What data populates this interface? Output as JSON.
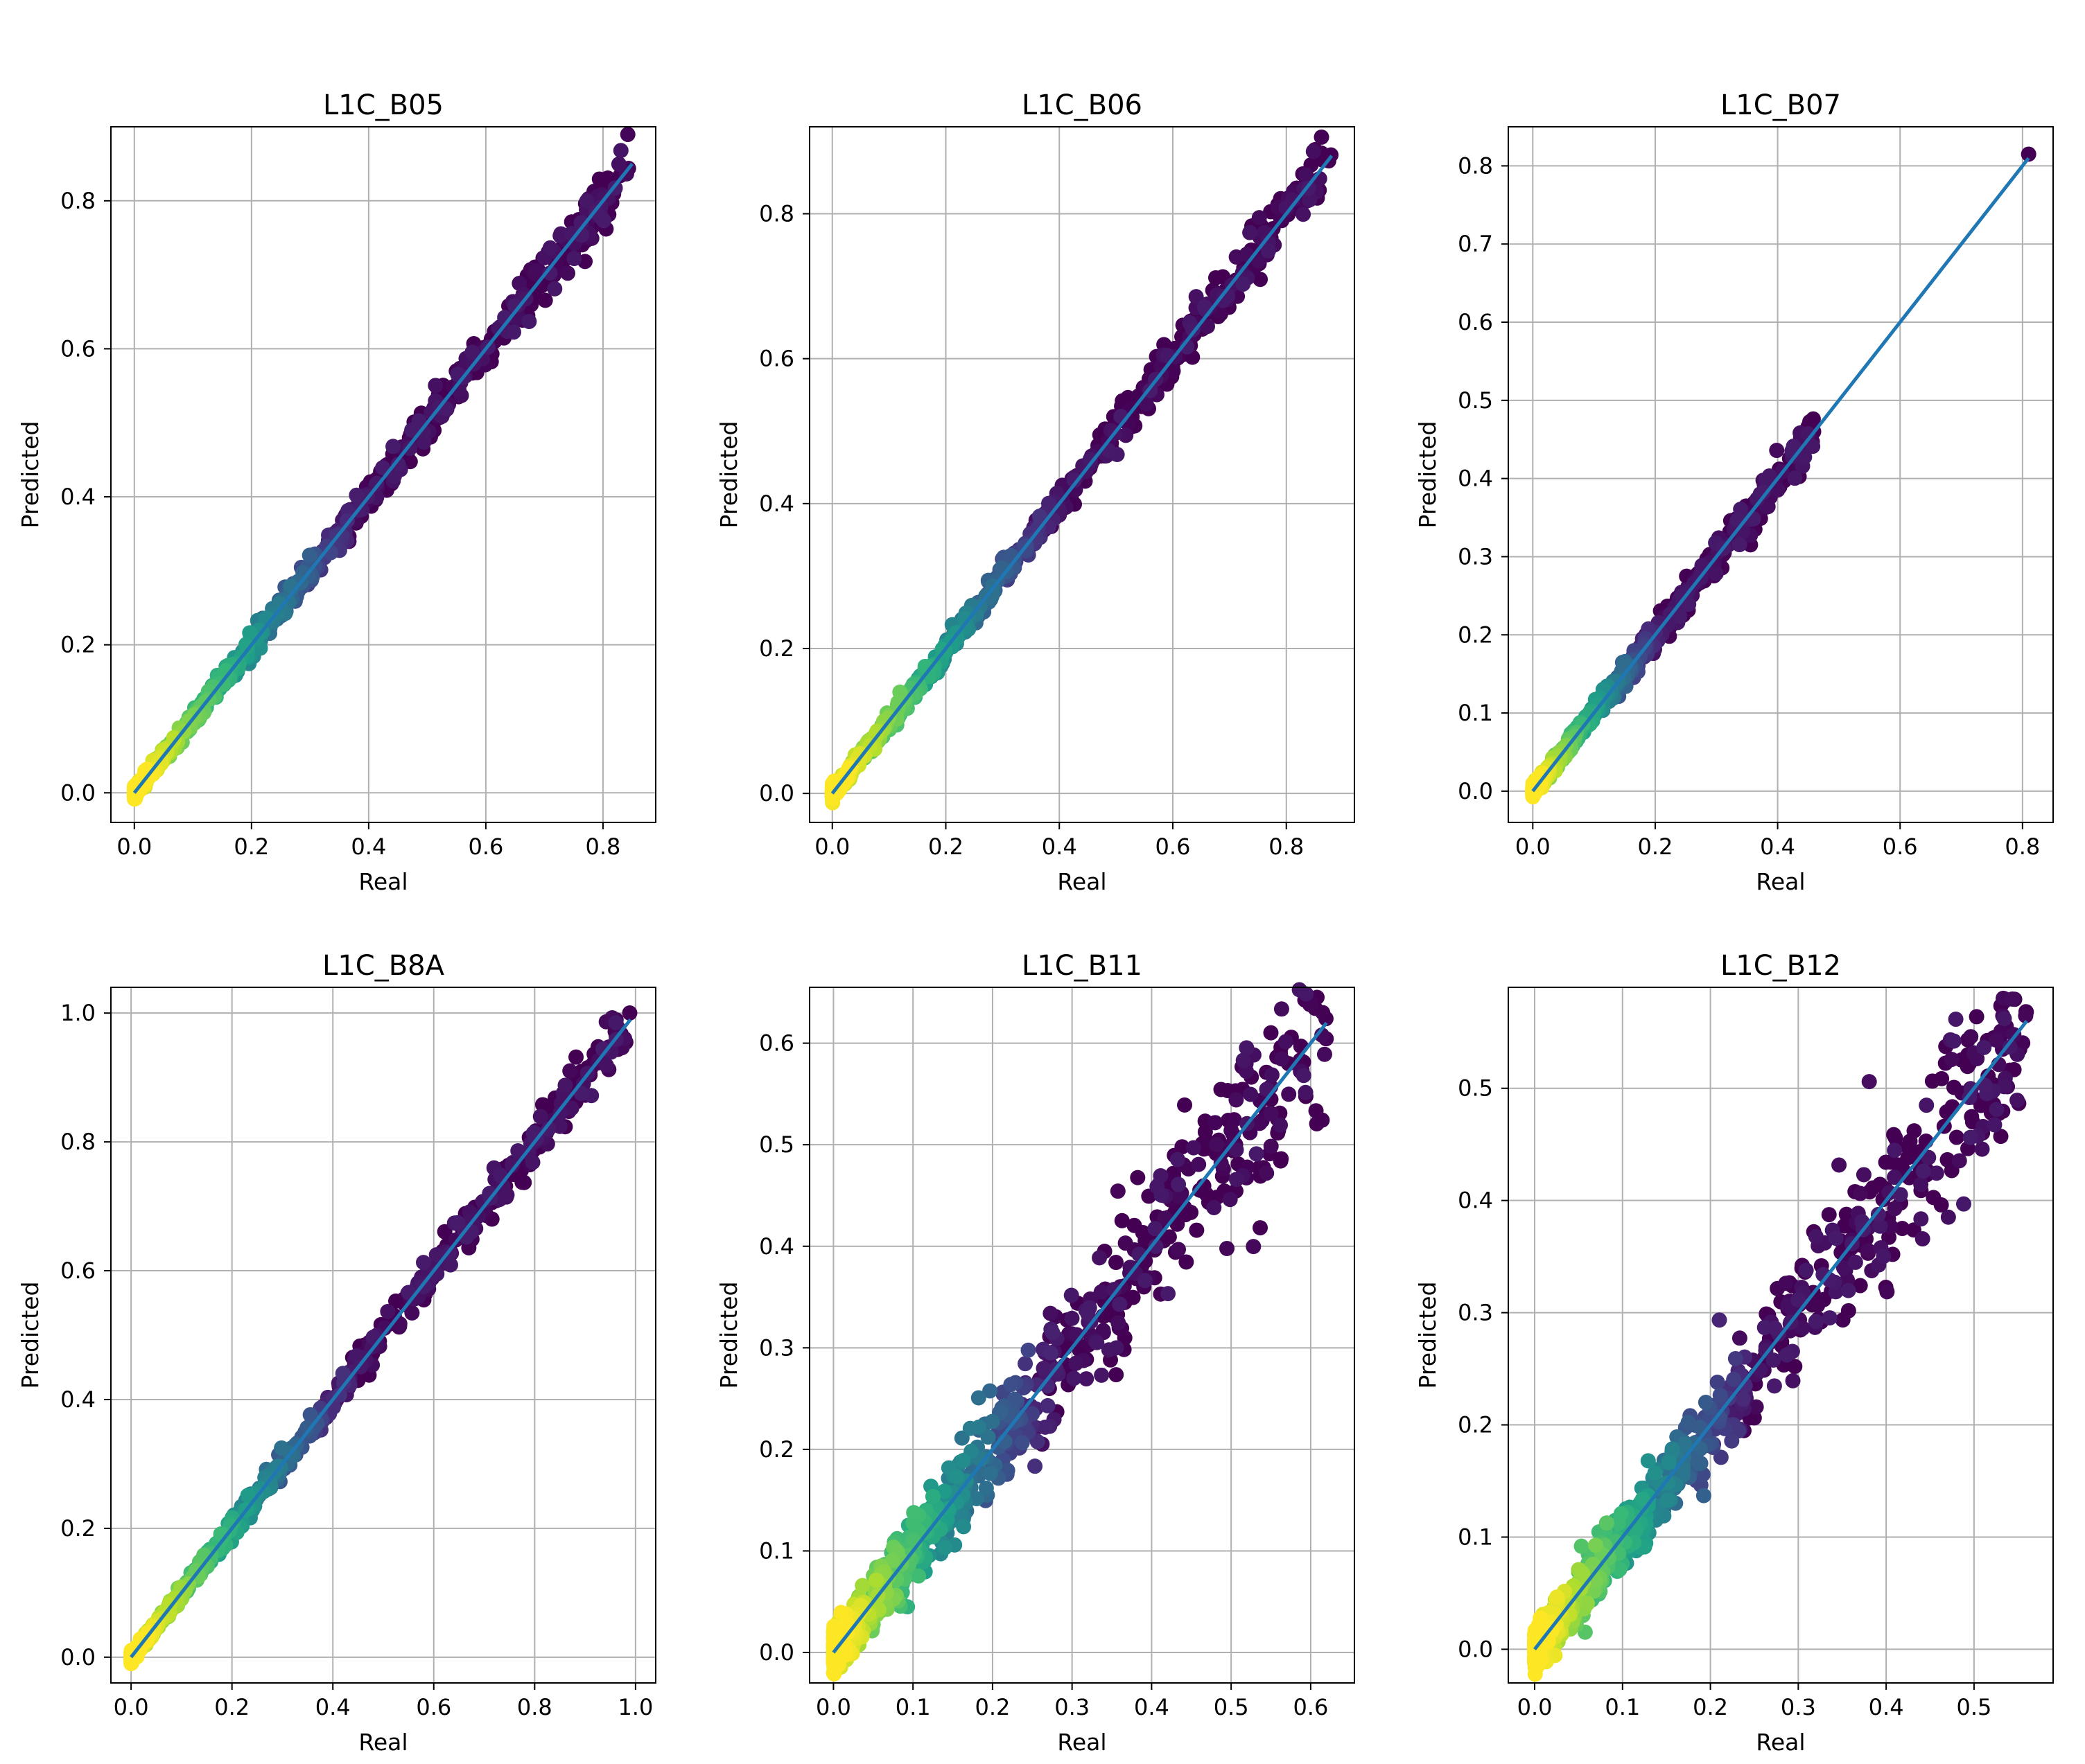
{
  "chart_data": [
    {
      "type": "scatter",
      "title": "L1C_B05",
      "xlabel": "Real",
      "ylabel": "Predicted",
      "xlim": [
        -0.04,
        0.89
      ],
      "ylim": [
        -0.04,
        0.9
      ],
      "xticks": [
        0.0,
        0.2,
        0.4,
        0.6,
        0.8
      ],
      "yticks": [
        0.0,
        0.2,
        0.4,
        0.6,
        0.8
      ],
      "tick_labels_x": [
        "0.0",
        "0.2",
        "0.4",
        "0.6",
        "0.8"
      ],
      "tick_labels_y": [
        "0.0",
        "0.2",
        "0.4",
        "0.6",
        "0.8"
      ],
      "grid": true,
      "fit_line": {
        "x": [
          0.0,
          0.85
        ],
        "y": [
          0.0,
          0.85
        ]
      },
      "scatter": {
        "xmax": 0.85,
        "noise": 0.01,
        "color_by_density": true
      }
    },
    {
      "type": "scatter",
      "title": "L1C_B06",
      "xlabel": "Real",
      "ylabel": "Predicted",
      "xlim": [
        -0.04,
        0.92
      ],
      "ylim": [
        -0.04,
        0.92
      ],
      "xticks": [
        0.0,
        0.2,
        0.4,
        0.6,
        0.8
      ],
      "yticks": [
        0.0,
        0.2,
        0.4,
        0.6,
        0.8
      ],
      "tick_labels_x": [
        "0.0",
        "0.2",
        "0.4",
        "0.6",
        "0.8"
      ],
      "tick_labels_y": [
        "0.0",
        "0.2",
        "0.4",
        "0.6",
        "0.8"
      ],
      "grid": true,
      "fit_line": {
        "x": [
          0.0,
          0.88
        ],
        "y": [
          0.0,
          0.88
        ]
      },
      "scatter": {
        "xmax": 0.88,
        "noise": 0.01,
        "color_by_density": true
      }
    },
    {
      "type": "scatter",
      "title": "L1C_B07",
      "xlabel": "Real",
      "ylabel": "Predicted",
      "xlim": [
        -0.04,
        0.85
      ],
      "ylim": [
        -0.04,
        0.85
      ],
      "xticks": [
        0.0,
        0.2,
        0.4,
        0.6,
        0.8
      ],
      "yticks": [
        0.0,
        0.1,
        0.2,
        0.3,
        0.4,
        0.5,
        0.6,
        0.7,
        0.8
      ],
      "tick_labels_x": [
        "0.0",
        "0.2",
        "0.4",
        "0.6",
        "0.8"
      ],
      "tick_labels_y": [
        "0.0",
        "0.1",
        "0.2",
        "0.3",
        "0.4",
        "0.5",
        "0.6",
        "0.7",
        "0.8"
      ],
      "grid": true,
      "fit_line": {
        "x": [
          0.0,
          0.81
        ],
        "y": [
          0.0,
          0.81
        ]
      },
      "scatter": {
        "xmax": 0.46,
        "noise": 0.008,
        "color_by_density": true,
        "extra_points": [
          [
            0.81,
            0.815
          ]
        ]
      }
    },
    {
      "type": "scatter",
      "title": "L1C_B8A",
      "xlabel": "Real",
      "ylabel": "Predicted",
      "xlim": [
        -0.04,
        1.04
      ],
      "ylim": [
        -0.04,
        1.04
      ],
      "xticks": [
        0.0,
        0.2,
        0.4,
        0.6,
        0.8,
        1.0
      ],
      "yticks": [
        0.0,
        0.2,
        0.4,
        0.6,
        0.8,
        1.0
      ],
      "tick_labels_x": [
        "0.0",
        "0.2",
        "0.4",
        "0.6",
        "0.8",
        "1.0"
      ],
      "tick_labels_y": [
        "0.0",
        "0.2",
        "0.4",
        "0.6",
        "0.8",
        "1.0"
      ],
      "grid": true,
      "fit_line": {
        "x": [
          0.0,
          0.99
        ],
        "y": [
          0.0,
          0.99
        ]
      },
      "scatter": {
        "xmax": 0.99,
        "noise": 0.01,
        "color_by_density": true
      }
    },
    {
      "type": "scatter",
      "title": "L1C_B11",
      "xlabel": "Real",
      "ylabel": "Predicted",
      "xlim": [
        -0.03,
        0.655
      ],
      "ylim": [
        -0.03,
        0.655
      ],
      "xticks": [
        0.0,
        0.1,
        0.2,
        0.3,
        0.4,
        0.5,
        0.6
      ],
      "yticks": [
        0.0,
        0.1,
        0.2,
        0.3,
        0.4,
        0.5,
        0.6
      ],
      "tick_labels_x": [
        "0.0",
        "0.1",
        "0.2",
        "0.3",
        "0.4",
        "0.5",
        "0.6"
      ],
      "tick_labels_y": [
        "0.0",
        "0.1",
        "0.2",
        "0.3",
        "0.4",
        "0.5",
        "0.6"
      ],
      "grid": true,
      "fit_line": {
        "x": [
          0.0,
          0.62
        ],
        "y": [
          0.0,
          0.62
        ]
      },
      "scatter": {
        "xmax": 0.62,
        "noise": 0.025,
        "color_by_density": true
      }
    },
    {
      "type": "scatter",
      "title": "L1C_B12",
      "xlabel": "Real",
      "ylabel": "Predicted",
      "xlim": [
        -0.03,
        0.59
      ],
      "ylim": [
        -0.03,
        0.59
      ],
      "xticks": [
        0.0,
        0.1,
        0.2,
        0.3,
        0.4,
        0.5
      ],
      "yticks": [
        0.0,
        0.1,
        0.2,
        0.3,
        0.4,
        0.5
      ],
      "tick_labels_x": [
        "0.0",
        "0.1",
        "0.2",
        "0.3",
        "0.4",
        "0.5"
      ],
      "tick_labels_y": [
        "0.0",
        "0.1",
        "0.2",
        "0.3",
        "0.4",
        "0.5"
      ],
      "grid": true,
      "fit_line": {
        "x": [
          0.0,
          0.56
        ],
        "y": [
          0.0,
          0.56
        ]
      },
      "scatter": {
        "xmax": 0.56,
        "noise": 0.022,
        "color_by_density": true
      }
    }
  ]
}
